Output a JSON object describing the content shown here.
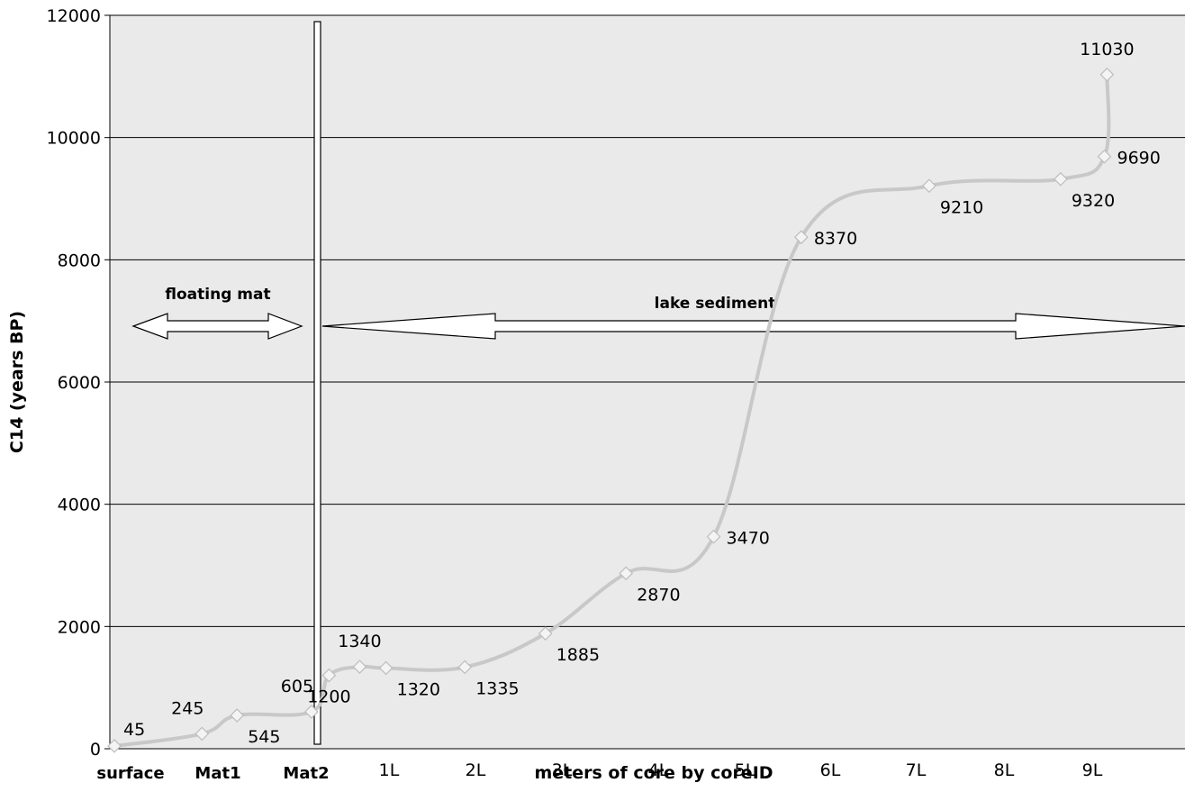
{
  "chart_data": {
    "type": "line",
    "title": "",
    "xlabel": "meters of core by coreID",
    "ylabel": "C14 (years BP)",
    "ylim": [
      0,
      12000
    ],
    "yticks": [
      0,
      2000,
      4000,
      6000,
      8000,
      10000,
      12000
    ],
    "grid": "horizontal",
    "categories": [
      {
        "label": "surface",
        "bold": true
      },
      {
        "label": "Mat1",
        "bold": true
      },
      {
        "label": "Mat2",
        "bold": true
      },
      {
        "label": "1L",
        "bold": false
      },
      {
        "label": "2L",
        "bold": false
      },
      {
        "label": "3L",
        "bold": false
      },
      {
        "label": "4L",
        "bold": false
      },
      {
        "label": "5L",
        "bold": false
      },
      {
        "label": "6L",
        "bold": false
      },
      {
        "label": "7L",
        "bold": false
      },
      {
        "label": "8L",
        "bold": false
      },
      {
        "label": "9L",
        "bold": false
      }
    ],
    "points": [
      {
        "x": 0.0,
        "y": 45,
        "label": "45",
        "pos": "ur"
      },
      {
        "x": 1.0,
        "y": 245,
        "label": "245",
        "pos": "ul"
      },
      {
        "x": 1.4,
        "y": 545,
        "label": "545",
        "pos": "lr"
      },
      {
        "x": 2.25,
        "y": 605,
        "label": "605",
        "pos": "ul"
      },
      {
        "x": 2.45,
        "y": 1200,
        "label": "1200",
        "pos": "lc"
      },
      {
        "x": 2.8,
        "y": 1340,
        "label": "1340",
        "pos": "uc"
      },
      {
        "x": 3.1,
        "y": 1320,
        "label": "1320",
        "pos": "lr"
      },
      {
        "x": 4.0,
        "y": 1335,
        "label": "1335",
        "pos": "lr"
      },
      {
        "x": 4.92,
        "y": 1885,
        "label": "1885",
        "pos": "lr"
      },
      {
        "x": 5.84,
        "y": 2870,
        "label": "2870",
        "pos": "lr"
      },
      {
        "x": 6.84,
        "y": 3470,
        "label": "3470",
        "pos": "r"
      },
      {
        "x": 7.84,
        "y": 8370,
        "label": "8370",
        "pos": "r"
      },
      {
        "x": 9.3,
        "y": 9210,
        "label": "9210",
        "pos": "lr"
      },
      {
        "x": 10.8,
        "y": 9320,
        "label": "9320",
        "pos": "lr"
      },
      {
        "x": 11.3,
        "y": 9690,
        "label": "9690",
        "pos": "r"
      },
      {
        "x": 11.33,
        "y": 11030,
        "label": "11030",
        "pos": "uc"
      }
    ],
    "annotations": {
      "floating_mat": "floating mat",
      "lake_sediment": "lake sediment"
    },
    "colors": {
      "plot_bg": "#eaeaea",
      "line": "#c8c8c8",
      "marker_fill": "#f4f4f4",
      "grid": "#000000"
    }
  }
}
